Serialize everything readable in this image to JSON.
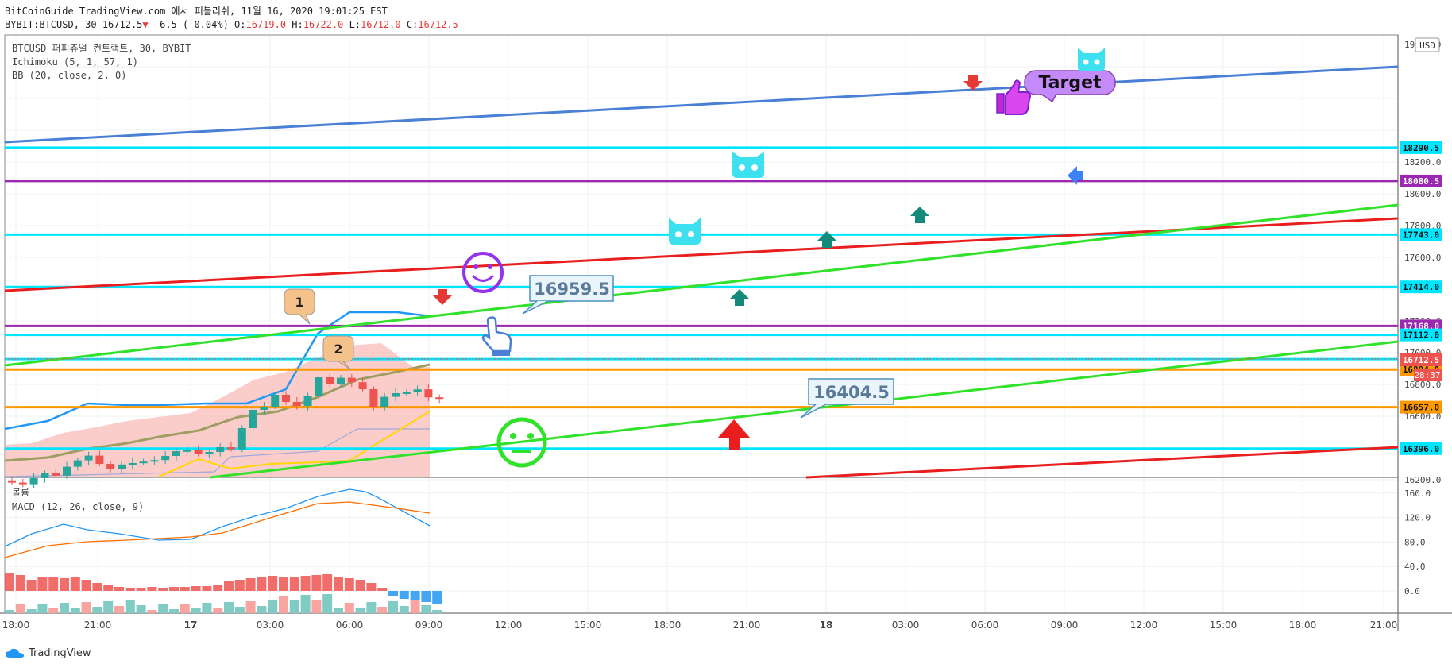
{
  "header": {
    "line1": "BitCoinGuide TradingView.com 에서 퍼블리쉬, 11월 16, 2020 19:01:25 EST",
    "symbol": "BYBIT:BTCUSD, 30",
    "last": "16712.5",
    "change": "-6.5 (-0.04%)",
    "o_label": "O:",
    "o_value": "16719.0",
    "h_label": "H:",
    "h_value": "16722.0",
    "l_label": "L:",
    "l_value": "16712.0",
    "c_label": "C:",
    "c_value": "16712.5"
  },
  "legend": {
    "line1": "BTCUSD 퍼피츄얼 컨트랙트, 30, BYBIT",
    "line2": "Ichimoku (5, 1, 57, 1)",
    "line3": "BB (20, close, 2, 0)",
    "vol": "볼륨",
    "macd": "MACD (12, 26, close, 9)"
  },
  "currency": "USD",
  "footer": {
    "brand": "TradingView"
  },
  "chart_data": {
    "type": "candlestick",
    "price_axis": {
      "min": 16110,
      "max": 19000,
      "ticks": [
        "19000.0",
        "18200.0",
        "18000.0",
        "17800.0",
        "17600.0",
        "17400.0",
        "17200.0",
        "17000.0",
        "16800.0",
        "16600.0",
        "16200.0"
      ]
    },
    "macd_axis": {
      "ticks": [
        "160.0",
        "120.0",
        "80.0",
        "40.0",
        "0.0"
      ]
    },
    "time_ticks": [
      "18:00",
      "21:00",
      "17",
      "03:00",
      "06:00",
      "09:00",
      "12:00",
      "15:00",
      "18:00",
      "21:00",
      "18",
      "03:00",
      "06:00",
      "09:00",
      "12:00",
      "15:00",
      "18:00",
      "21:00"
    ],
    "horizontal_levels": [
      {
        "value": "18290.5",
        "color": "#00e5ff"
      },
      {
        "value": "18080.5",
        "color": "#9c27b0"
      },
      {
        "value": "17743.0",
        "color": "#00e5ff"
      },
      {
        "value": "17414.0",
        "color": "#00e5ff"
      },
      {
        "value": "17168.0",
        "color": "#9c27b0"
      },
      {
        "value": "17112.0",
        "color": "#00e5ff"
      },
      {
        "value": "16959.5",
        "color": "#00e5ff"
      },
      {
        "value": "16894.0",
        "color": "#ff9800"
      },
      {
        "value": "16657.0",
        "color": "#ff9800"
      },
      {
        "value": "16396.0",
        "color": "#00e5ff"
      }
    ],
    "current_price": {
      "value": "16712.5",
      "countdown": "28:37"
    },
    "callouts": [
      {
        "text": "16959.5"
      },
      {
        "text": "16404.5"
      }
    ],
    "target_label": "Target",
    "wave_labels": [
      "1",
      "2"
    ],
    "colors": {
      "up": "#26a69a",
      "down": "#ef5350",
      "cyan": "#00e5ff",
      "purple": "#9c27b0",
      "orange": "#ff9800",
      "green": "#31e22a",
      "red": "#e91e1e",
      "blue": "#3b82f6"
    }
  }
}
